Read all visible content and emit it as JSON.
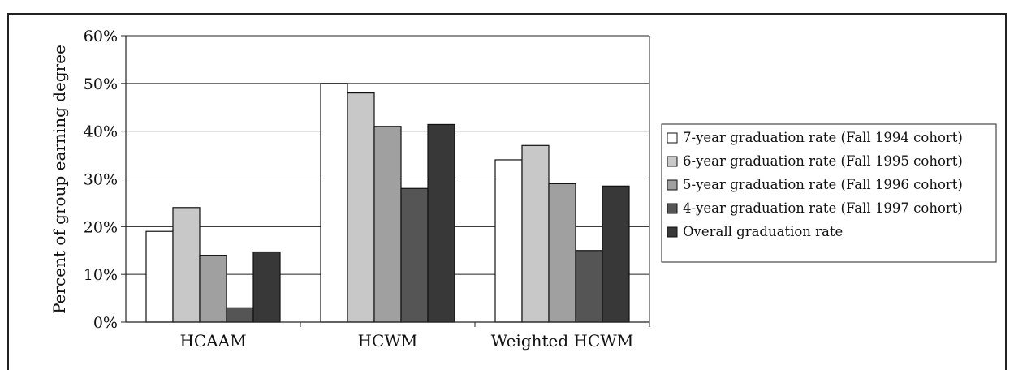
{
  "chart_data": {
    "type": "bar",
    "ylabel": "Percent of group earning degree",
    "xlabel": "",
    "ylim": [
      0,
      60
    ],
    "ytick_step": 10,
    "ytick_suffix": "%",
    "grid": true,
    "legend_position": "right",
    "categories": [
      "HCAAM",
      "HCWM",
      "Weighted HCWM"
    ],
    "series": [
      {
        "name": "7-year graduation rate (Fall 1994 cohort)",
        "values": [
          19,
          50,
          34
        ],
        "color": "#ffffff"
      },
      {
        "name": "6-year graduation rate (Fall 1995 cohort)",
        "values": [
          24,
          48,
          37
        ],
        "color": "#c8c8c8"
      },
      {
        "name": "5-year graduation rate (Fall 1996 cohort)",
        "values": [
          14,
          41,
          29
        ],
        "color": "#a0a0a0"
      },
      {
        "name": "4-year graduation rate (Fall 1997 cohort)",
        "values": [
          3,
          28,
          15
        ],
        "color": "#555555"
      },
      {
        "name": "Overall graduation rate",
        "values": [
          14.7,
          41.4,
          28.5
        ],
        "color": "#383838"
      }
    ]
  }
}
